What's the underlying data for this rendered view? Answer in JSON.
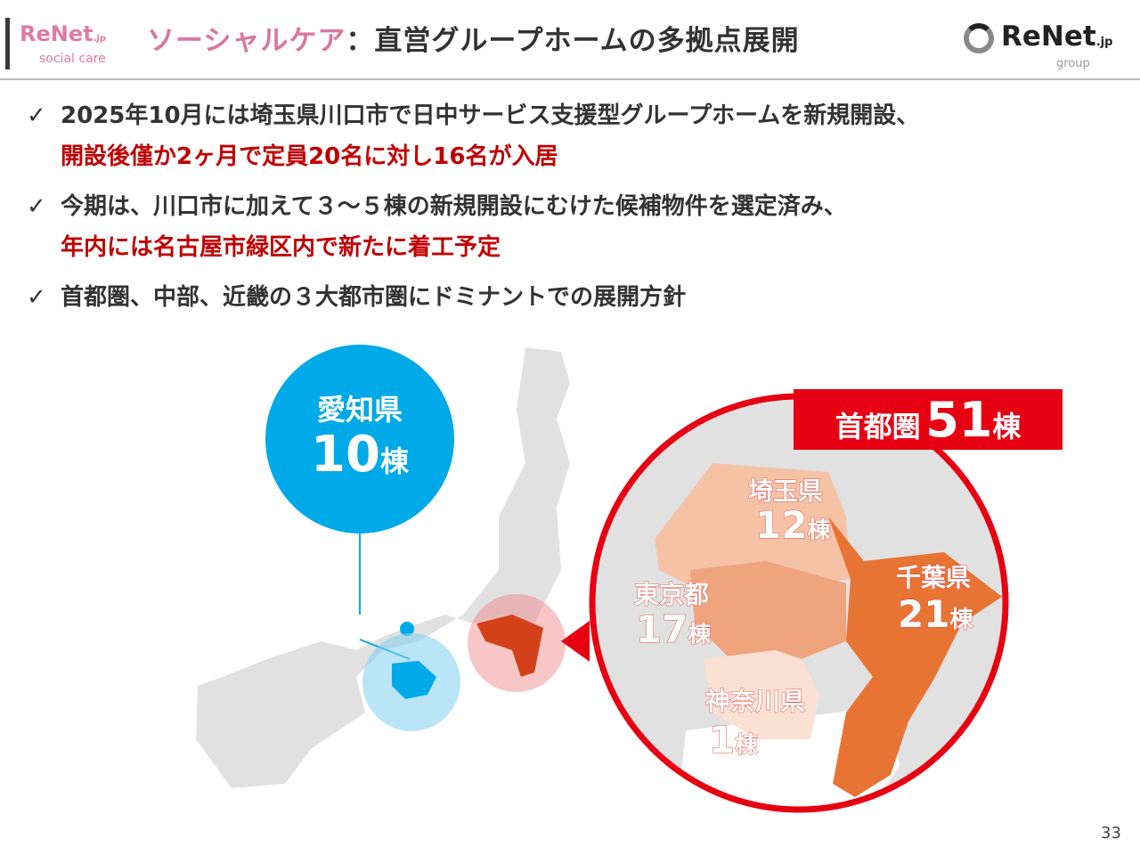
{
  "header": {
    "logo_left": {
      "name": "ReNet",
      "suffix": ".jp",
      "sub": "social care"
    },
    "title_highlight": "ソーシャルケア",
    "title_rest": "：直営グループホームの多拠点展開",
    "logo_right": {
      "name": "ReNet",
      "suffix": ".jp",
      "sub": "group"
    }
  },
  "bullets": [
    {
      "check": "✓",
      "line1": "2025年10月には埼玉県川口市で日中サービス支援型グループホームを新規開設、",
      "line2": "開設後僅か2ヶ月で定員20名に対し16名が入居"
    },
    {
      "check": "✓",
      "line1": "今期は、川口市に加えて３～５棟の新規開設にむけた候補物件を選定済み、",
      "line2": "年内には名古屋市緑区内で新たに着工予定"
    },
    {
      "check": "✓",
      "line1": "首都圏、中部、近畿の３大都市圏にドミナントでの展開方針"
    }
  ],
  "map": {
    "aichi": {
      "name": "愛知県",
      "count": "10",
      "unit": "棟",
      "color": "#00a9e8"
    },
    "shutoken": {
      "name": "首都圏",
      "count": "51",
      "unit": "棟",
      "color": "#e60012"
    },
    "prefectures": [
      {
        "name": "埼玉県",
        "count": "12",
        "unit": "棟",
        "color": "#f5c2a6"
      },
      {
        "name": "東京都",
        "count": "17",
        "unit": "棟",
        "color": "#f0a47e"
      },
      {
        "name": "千葉県",
        "count": "21",
        "unit": "棟",
        "color": "#e87434"
      },
      {
        "name": "神奈川県",
        "count": "1",
        "unit": "棟",
        "color": "#fbe1d4"
      }
    ]
  },
  "page_number": "33"
}
